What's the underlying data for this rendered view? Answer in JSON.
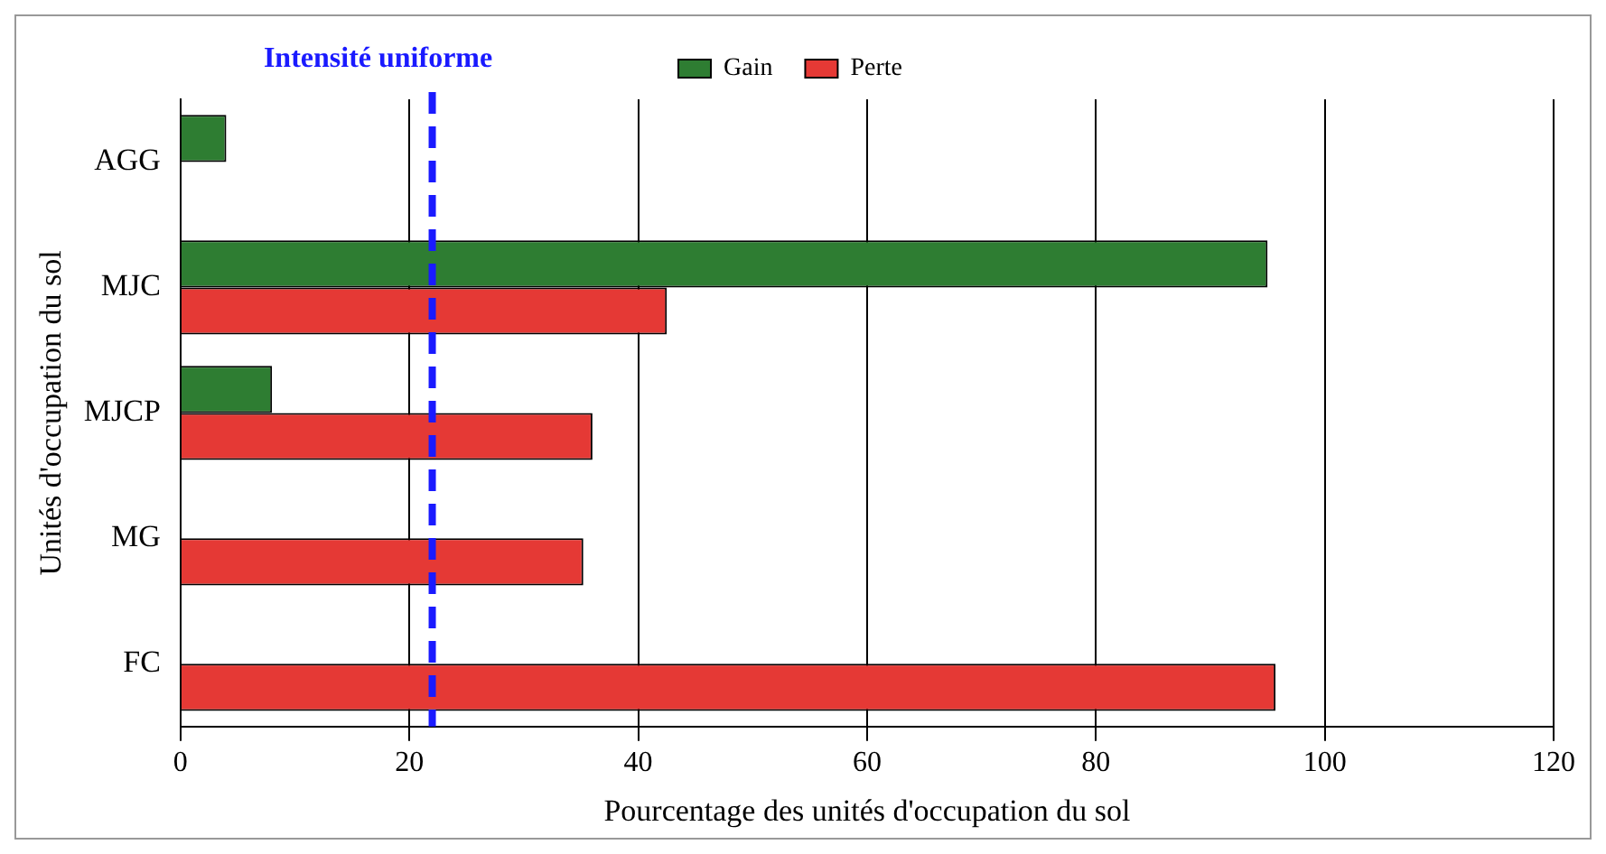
{
  "chart_data": {
    "type": "bar",
    "orientation": "horizontal",
    "categories": [
      "AGG",
      "MJC",
      "MJCP",
      "MG",
      "FC"
    ],
    "series": [
      {
        "name": "Gain",
        "color": "#2e7d32",
        "values": [
          4,
          95,
          8,
          null,
          null
        ]
      },
      {
        "name": "Perte",
        "color": "#e53935",
        "values": [
          null,
          42.5,
          36,
          35.2,
          95.7
        ]
      }
    ],
    "xlabel": "Pourcentage des unités d'occupation du sol",
    "ylabel": "Unités d'occupation du sol",
    "xlim": [
      0,
      120
    ],
    "xticks": [
      0,
      20,
      40,
      60,
      80,
      100,
      120
    ],
    "grid": "x",
    "legend": "top",
    "ref_lines": [
      {
        "axis": "x",
        "value": 22,
        "label": "Intensité uniforme",
        "color": "#1a1aff",
        "line_style": "dashed"
      }
    ]
  }
}
